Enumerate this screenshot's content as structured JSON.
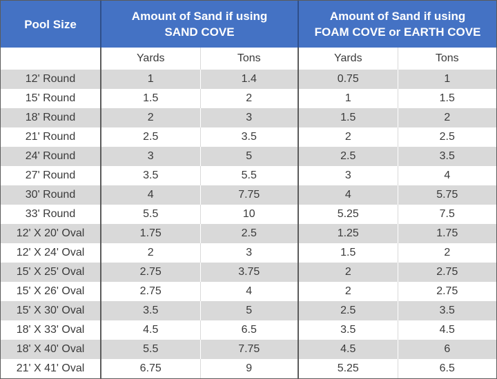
{
  "header": {
    "pool_size": "Pool Size",
    "group1_line1": "Amount of Sand if using",
    "group1_line2": "SAND COVE",
    "group2_line1": "Amount of Sand if using",
    "group2_line2": "FOAM COVE or EARTH COVE",
    "sub": [
      "",
      "Yards",
      "Tons",
      "Yards",
      "Tons"
    ]
  },
  "rows": [
    [
      "12' Round",
      "1",
      "1.4",
      "0.75",
      "1"
    ],
    [
      "15' Round",
      "1.5",
      "2",
      "1",
      "1.5"
    ],
    [
      "18' Round",
      "2",
      "3",
      "1.5",
      "2"
    ],
    [
      "21' Round",
      "2.5",
      "3.5",
      "2",
      "2.5"
    ],
    [
      "24' Round",
      "3",
      "5",
      "2.5",
      "3.5"
    ],
    [
      "27' Round",
      "3.5",
      "5.5",
      "3",
      "4"
    ],
    [
      "30' Round",
      "4",
      "7.75",
      "4",
      "5.75"
    ],
    [
      "33' Round",
      "5.5",
      "10",
      "5.25",
      "7.5"
    ],
    [
      "12' X 20' Oval",
      "1.75",
      "2.5",
      "1.25",
      "1.75"
    ],
    [
      "12' X 24' Oval",
      "2",
      "3",
      "1.5",
      "2"
    ],
    [
      "15' X 25' Oval",
      "2.75",
      "3.75",
      "2",
      "2.75"
    ],
    [
      "15' X 26' Oval",
      "2.75",
      "4",
      "2",
      "2.75"
    ],
    [
      "15' X 30' Oval",
      "3.5",
      "5",
      "2.5",
      "3.5"
    ],
    [
      "18' X 33' Oval",
      "4.5",
      "6.5",
      "3.5",
      "4.5"
    ],
    [
      "18' X 40' Oval",
      "5.5",
      "7.75",
      "4.5",
      "6"
    ],
    [
      "21' X 41' Oval",
      "6.75",
      "9",
      "5.25",
      "6.5"
    ]
  ]
}
